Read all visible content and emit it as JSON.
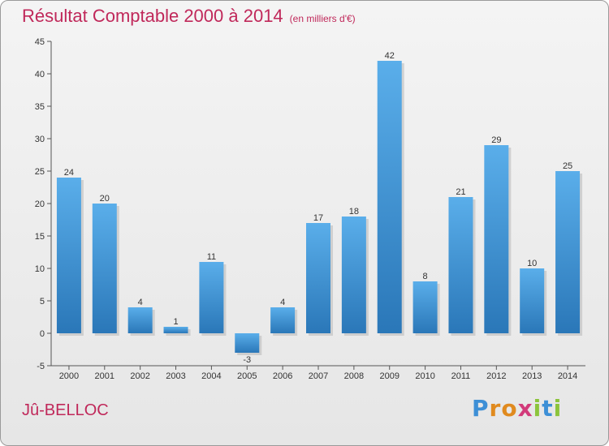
{
  "chart_data": {
    "type": "bar",
    "title": "Résultat Comptable 2000 à 2014",
    "subtitle": "(en milliers d'€)",
    "location": "Jû-BELLOC",
    "categories": [
      "2000",
      "2001",
      "2002",
      "2003",
      "2004",
      "2005",
      "2006",
      "2007",
      "2008",
      "2009",
      "2010",
      "2011",
      "2012",
      "2013",
      "2014"
    ],
    "values": [
      24,
      20,
      4,
      1,
      11,
      -3,
      4,
      17,
      18,
      42,
      8,
      21,
      29,
      10,
      25
    ],
    "xlabel": "",
    "ylabel": "",
    "ylim": [
      -5,
      45
    ],
    "yticks": [
      -5,
      0,
      5,
      10,
      15,
      20,
      25,
      30,
      35,
      40,
      45
    ],
    "grid": false,
    "colors": {
      "bar_top": "#5aaeea",
      "bar_bottom": "#2a77b8",
      "title": "#c0285a"
    }
  },
  "logo": {
    "letters": [
      "P",
      "r",
      "o",
      "x",
      "i",
      "t",
      "i"
    ],
    "colors": [
      "#3d8fd6",
      "#e08a1e",
      "#e08a1e",
      "#d23a7a",
      "#8cc43c",
      "#3d8fd6",
      "#8cc43c"
    ]
  }
}
